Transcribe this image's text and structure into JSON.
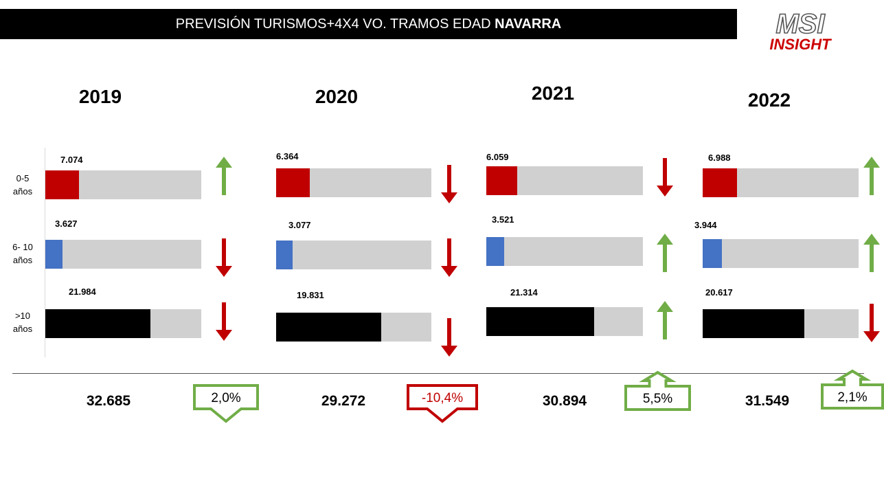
{
  "header": {
    "title_prefix": "PREVISIÓN TURISMOS+4X4 VO. TRAMOS EDAD ",
    "title_bold": "NAVARRA"
  },
  "logo": {
    "line1": "MSI",
    "line2": "INSIGHT",
    "color": "#cc0000"
  },
  "chart_data": {
    "type": "bar",
    "orientation": "horizontal",
    "stacked_against_total": true,
    "categories": [
      "0-5 años",
      "6- 10 años",
      ">10 años"
    ],
    "years": [
      "2019",
      "2020",
      "2021",
      "2022"
    ],
    "series": [
      {
        "year": "2019",
        "values": [
          7074,
          3627,
          21984
        ],
        "labels": [
          "7.074",
          "3.627",
          "21.984"
        ],
        "trends": [
          "up",
          "down",
          "down"
        ],
        "total": 32685,
        "total_label": "32.685"
      },
      {
        "year": "2020",
        "values": [
          6364,
          3077,
          19831
        ],
        "labels": [
          "6.364",
          "3.077",
          "19.831"
        ],
        "trends": [
          "down",
          "down",
          "down"
        ],
        "total": 29272,
        "total_label": "29.272"
      },
      {
        "year": "2021",
        "values": [
          6059,
          3521,
          21314
        ],
        "labels": [
          "6.059",
          "3.521",
          "21.314"
        ],
        "trends": [
          "down",
          "up",
          "up"
        ],
        "total": 30894,
        "total_label": "30.894"
      },
      {
        "year": "2022",
        "values": [
          6988,
          3944,
          20617
        ],
        "labels": [
          "6.988",
          "3.944",
          "20.617"
        ],
        "trends": [
          "up",
          "up",
          "down"
        ],
        "total": 31549,
        "total_label": "31.549"
      }
    ],
    "changes": [
      {
        "label": "2,0%",
        "direction": "down",
        "color": "#70ad47"
      },
      {
        "label": "-10,4%",
        "direction": "down",
        "color": "#c00000"
      },
      {
        "label": "5,5%",
        "direction": "up",
        "color": "#70ad47"
      },
      {
        "label": "2,1%",
        "direction": "up",
        "color": "#70ad47"
      }
    ],
    "colors": {
      "0-5": "#c00000",
      "6-10": "#4472c4",
      ">10": "#000000",
      "track": "#d0d0d0",
      "up": "#70ad47",
      "down": "#c00000"
    }
  }
}
